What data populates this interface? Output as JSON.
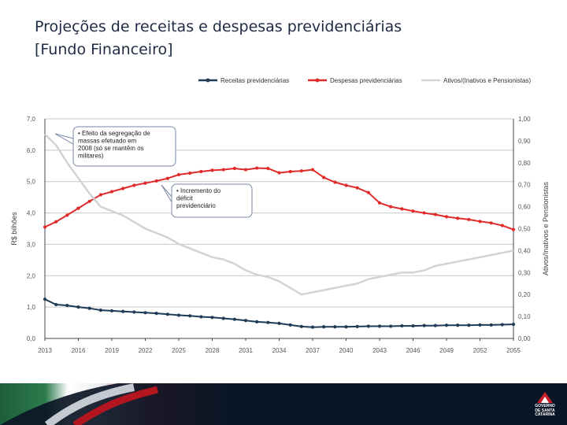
{
  "slide": {
    "title_line1": "Projeções de receitas e despesas previdenciárias",
    "title_line2": "[Fundo Financeiro]"
  },
  "footer": {
    "logo_text": [
      "GOVERNO",
      "DE SANTA",
      "CATARINA"
    ]
  },
  "chart_data": {
    "type": "line",
    "title": "",
    "xlabel": "",
    "ylabel": "R$ bilhões",
    "ylabel_right": "Ativos/Inativos e Pensionistas",
    "ylim": [
      0,
      7
    ],
    "ylim_right": [
      0,
      1
    ],
    "yticks": [
      "0,0",
      "1,0",
      "2,0",
      "3,0",
      "4,0",
      "5,0",
      "6,0",
      "7,0"
    ],
    "yticks_right": [
      "0,00",
      "0,10",
      "0,20",
      "0,30",
      "0,40",
      "0,50",
      "0,60",
      "0,70",
      "0,80",
      "0,90",
      "1,00"
    ],
    "xtick_labels": [
      "2013",
      "2016",
      "2019",
      "2022",
      "2025",
      "2028",
      "2031",
      "2034",
      "2037",
      "2040",
      "2043",
      "2046",
      "2049",
      "2052",
      "2055"
    ],
    "grid": true,
    "legend_position": "top",
    "x": [
      2013,
      2014,
      2015,
      2016,
      2017,
      2018,
      2019,
      2020,
      2021,
      2022,
      2023,
      2024,
      2025,
      2026,
      2027,
      2028,
      2029,
      2030,
      2031,
      2032,
      2033,
      2034,
      2035,
      2036,
      2037,
      2038,
      2039,
      2040,
      2041,
      2042,
      2043,
      2044,
      2045,
      2046,
      2047,
      2048,
      2049,
      2050,
      2051,
      2052,
      2053,
      2054,
      2055
    ],
    "series": [
      {
        "name": "Receitas previdenciárias",
        "axis": "left",
        "color": "#1f3b57",
        "values": [
          1.25,
          1.08,
          1.05,
          1.0,
          0.96,
          0.9,
          0.88,
          0.86,
          0.84,
          0.82,
          0.8,
          0.77,
          0.74,
          0.72,
          0.69,
          0.67,
          0.64,
          0.61,
          0.57,
          0.53,
          0.51,
          0.48,
          0.43,
          0.38,
          0.36,
          0.37,
          0.37,
          0.37,
          0.38,
          0.39,
          0.39,
          0.39,
          0.4,
          0.4,
          0.41,
          0.41,
          0.42,
          0.42,
          0.42,
          0.43,
          0.43,
          0.44,
          0.45
        ]
      },
      {
        "name": "Despesas previdenciárias",
        "axis": "left",
        "color": "#e02a2a",
        "values": [
          3.55,
          3.72,
          3.93,
          4.15,
          4.37,
          4.58,
          4.68,
          4.78,
          4.88,
          4.95,
          5.02,
          5.1,
          5.22,
          5.27,
          5.32,
          5.36,
          5.38,
          5.42,
          5.38,
          5.43,
          5.42,
          5.28,
          5.32,
          5.34,
          5.38,
          5.13,
          4.98,
          4.88,
          4.8,
          4.65,
          4.32,
          4.2,
          4.13,
          4.06,
          4.0,
          3.95,
          3.88,
          3.83,
          3.79,
          3.73,
          3.68,
          3.6,
          3.47
        ]
      },
      {
        "name": "Ativos/(Inativos e Pensionistas)",
        "axis": "right",
        "color": "#d3d3d3",
        "values": [
          0.93,
          0.88,
          0.8,
          0.73,
          0.66,
          0.6,
          0.58,
          0.56,
          0.53,
          0.5,
          0.48,
          0.46,
          0.43,
          0.41,
          0.39,
          0.37,
          0.36,
          0.34,
          0.31,
          0.29,
          0.28,
          0.26,
          0.23,
          0.2,
          0.21,
          0.22,
          0.23,
          0.24,
          0.25,
          0.27,
          0.28,
          0.29,
          0.3,
          0.3,
          0.31,
          0.33,
          0.34,
          0.35,
          0.36,
          0.37,
          0.38,
          0.39,
          0.4
        ]
      }
    ],
    "annotations": [
      {
        "lines": [
          "• Efeito da segregação de",
          "massas  efetuado em",
          "2008 (só se mantêm os",
          "militares)"
        ]
      },
      {
        "lines": [
          "• Incremento do",
          "déficit",
          "previdenciário"
        ]
      }
    ]
  }
}
